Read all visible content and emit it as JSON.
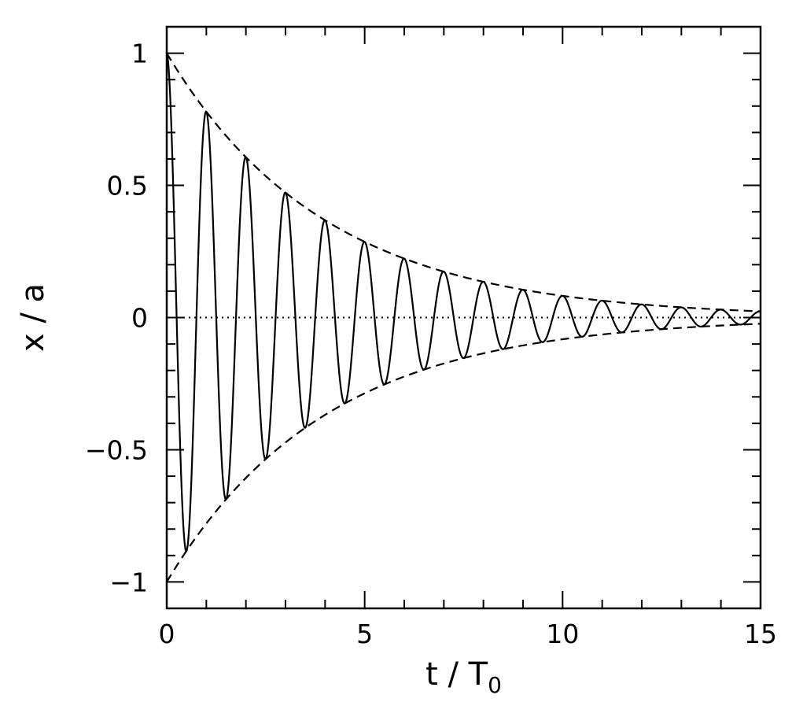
{
  "chart_data": {
    "type": "line",
    "title": "",
    "xlabel": "t / T",
    "xlabel_subscript": "0",
    "ylabel": "x / a",
    "xlim": [
      0,
      15
    ],
    "ylim": [
      -1.1,
      1.1
    ],
    "x_ticks": [
      0,
      5,
      10,
      15
    ],
    "x_tick_labels": [
      "0",
      "5",
      "10",
      "15"
    ],
    "y_ticks": [
      1,
      0.5,
      0,
      -0.5,
      -1
    ],
    "y_tick_labels": [
      "1",
      "0.5",
      "0",
      "−0.5",
      "−1"
    ],
    "x_minor_step": 1,
    "y_minor_step": 0.1,
    "grid": false,
    "series": [
      {
        "style": "solid",
        "function": "damped cosine x/a = exp(-t/(4 T0)) cos(2π t/T0)",
        "x": [
          0,
          0.5,
          1,
          1.5,
          2,
          2.5,
          3,
          3.5,
          4,
          4.5,
          5,
          5.5,
          6,
          6.5,
          7,
          7.5,
          8,
          8.5,
          9,
          9.5,
          10,
          10.5,
          11,
          11.5,
          12,
          12.5,
          13,
          13.5,
          14,
          14.5,
          15
        ],
        "y": [
          1,
          -0.88,
          0.78,
          -0.69,
          0.61,
          -0.54,
          0.47,
          -0.42,
          0.37,
          -0.32,
          0.29,
          -0.25,
          0.22,
          -0.2,
          0.17,
          -0.15,
          0.14,
          -0.12,
          0.11,
          -0.09,
          0.08,
          -0.07,
          0.06,
          -0.06,
          0.05,
          -0.04,
          0.04,
          -0.03,
          0.03,
          -0.03,
          0.02
        ]
      },
      {
        "style": "dashed",
        "function": "upper envelope exp(-t/(4 T0))",
        "x": [
          0,
          2.5,
          5,
          7.5,
          10,
          12.5,
          15
        ],
        "y": [
          1,
          0.54,
          0.29,
          0.15,
          0.08,
          0.04,
          0.02
        ]
      },
      {
        "style": "dashed",
        "function": "lower envelope -exp(-t/(4 T0))",
        "x": [
          0,
          2.5,
          5,
          7.5,
          10,
          12.5,
          15
        ],
        "y": [
          -1,
          -0.54,
          -0.29,
          -0.15,
          -0.08,
          -0.04,
          -0.02
        ]
      },
      {
        "style": "dotted",
        "function": "zero line",
        "x": [
          0,
          15
        ],
        "y": [
          0,
          0
        ]
      }
    ]
  }
}
